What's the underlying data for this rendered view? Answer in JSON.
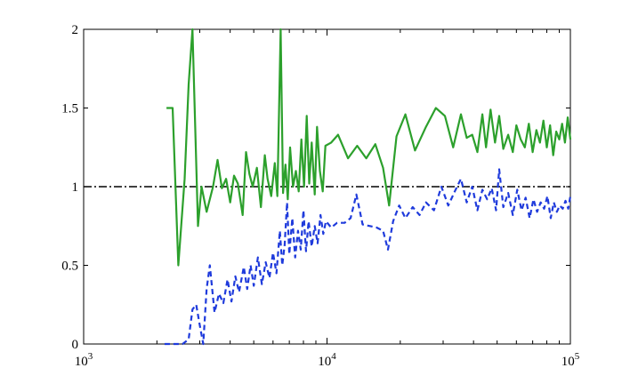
{
  "chart_data": {
    "type": "line",
    "x_scale": "log",
    "xlim": [
      1000,
      100000
    ],
    "ylim": [
      0,
      2
    ],
    "x_ticks": [
      {
        "value": 1000,
        "base": "10",
        "exp": "3"
      },
      {
        "value": 10000,
        "base": "10",
        "exp": "4"
      },
      {
        "value": 100000,
        "base": "10",
        "exp": "5"
      }
    ],
    "y_ticks": [
      {
        "value": 0,
        "label": "0"
      },
      {
        "value": 0.5,
        "label": "0.5"
      },
      {
        "value": 1,
        "label": "1"
      },
      {
        "value": 1.5,
        "label": "1.5"
      },
      {
        "value": 2,
        "label": "2"
      }
    ],
    "grid": false,
    "reference_line": {
      "y": 1,
      "style": "dash-dot",
      "color": "#000000"
    },
    "series": [
      {
        "color": "#2ca02c",
        "style": "solid",
        "points": [
          [
            2190,
            1.5
          ],
          [
            2320,
            1.5
          ],
          [
            2450,
            0.5
          ],
          [
            2600,
            1.05
          ],
          [
            2700,
            1.65
          ],
          [
            2800,
            2.0
          ],
          [
            2950,
            0.75
          ],
          [
            3050,
            1.0
          ],
          [
            3200,
            0.84
          ],
          [
            3400,
            1.0
          ],
          [
            3550,
            1.17
          ],
          [
            3700,
            0.99
          ],
          [
            3850,
            1.05
          ],
          [
            4000,
            0.9
          ],
          [
            4150,
            1.07
          ],
          [
            4300,
            1.02
          ],
          [
            4500,
            0.82
          ],
          [
            4650,
            1.22
          ],
          [
            4800,
            1.08
          ],
          [
            4950,
            1.0
          ],
          [
            5150,
            1.12
          ],
          [
            5350,
            0.87
          ],
          [
            5550,
            1.2
          ],
          [
            5700,
            1.05
          ],
          [
            5900,
            0.94
          ],
          [
            6100,
            1.15
          ],
          [
            6250,
            0.94
          ],
          [
            6450,
            2.0
          ],
          [
            6600,
            0.96
          ],
          [
            6750,
            1.14
          ],
          [
            6900,
            0.92
          ],
          [
            7050,
            1.25
          ],
          [
            7250,
            1.0
          ],
          [
            7450,
            1.1
          ],
          [
            7650,
            0.97
          ],
          [
            7850,
            1.3
          ],
          [
            8050,
            1.0
          ],
          [
            8250,
            1.45
          ],
          [
            8450,
            1.02
          ],
          [
            8650,
            1.28
          ],
          [
            8900,
            0.95
          ],
          [
            9100,
            1.38
          ],
          [
            9350,
            1.1
          ],
          [
            9600,
            0.97
          ],
          [
            9850,
            1.26
          ],
          [
            10400,
            1.28
          ],
          [
            11100,
            1.33
          ],
          [
            12200,
            1.18
          ],
          [
            13300,
            1.26
          ],
          [
            14500,
            1.18
          ],
          [
            15800,
            1.27
          ],
          [
            17000,
            1.12
          ],
          [
            18000,
            0.88
          ],
          [
            19300,
            1.32
          ],
          [
            21000,
            1.46
          ],
          [
            23000,
            1.23
          ],
          [
            25500,
            1.38
          ],
          [
            28000,
            1.5
          ],
          [
            30500,
            1.45
          ],
          [
            33000,
            1.25
          ],
          [
            35500,
            1.46
          ],
          [
            37500,
            1.31
          ],
          [
            39500,
            1.33
          ],
          [
            41500,
            1.22
          ],
          [
            43500,
            1.46
          ],
          [
            45000,
            1.25
          ],
          [
            47000,
            1.49
          ],
          [
            49000,
            1.28
          ],
          [
            51000,
            1.45
          ],
          [
            53000,
            1.24
          ],
          [
            55500,
            1.33
          ],
          [
            58000,
            1.22
          ],
          [
            60000,
            1.39
          ],
          [
            62500,
            1.3
          ],
          [
            65000,
            1.25
          ],
          [
            67500,
            1.4
          ],
          [
            70000,
            1.22
          ],
          [
            72500,
            1.36
          ],
          [
            75000,
            1.28
          ],
          [
            77500,
            1.42
          ],
          [
            80000,
            1.25
          ],
          [
            82500,
            1.39
          ],
          [
            85000,
            1.2
          ],
          [
            87500,
            1.35
          ],
          [
            90000,
            1.3
          ],
          [
            92500,
            1.4
          ],
          [
            95000,
            1.28
          ],
          [
            97500,
            1.44
          ],
          [
            100000,
            1.3
          ]
        ]
      },
      {
        "color": "#1f3bdc",
        "style": "dashed",
        "points": [
          [
            2150,
            0.0
          ],
          [
            2400,
            0.0
          ],
          [
            2550,
            0.0
          ],
          [
            2700,
            0.03
          ],
          [
            2800,
            0.22
          ],
          [
            2900,
            0.25
          ],
          [
            3000,
            0.12
          ],
          [
            3100,
            0.0
          ],
          [
            3200,
            0.35
          ],
          [
            3300,
            0.5
          ],
          [
            3450,
            0.2
          ],
          [
            3600,
            0.32
          ],
          [
            3750,
            0.26
          ],
          [
            3900,
            0.41
          ],
          [
            4050,
            0.27
          ],
          [
            4200,
            0.43
          ],
          [
            4350,
            0.33
          ],
          [
            4550,
            0.49
          ],
          [
            4700,
            0.35
          ],
          [
            4850,
            0.5
          ],
          [
            5000,
            0.37
          ],
          [
            5200,
            0.55
          ],
          [
            5400,
            0.38
          ],
          [
            5600,
            0.52
          ],
          [
            5800,
            0.42
          ],
          [
            6000,
            0.58
          ],
          [
            6200,
            0.45
          ],
          [
            6400,
            0.72
          ],
          [
            6550,
            0.5
          ],
          [
            6700,
            0.63
          ],
          [
            6850,
            0.9
          ],
          [
            7000,
            0.57
          ],
          [
            7200,
            0.8
          ],
          [
            7400,
            0.55
          ],
          [
            7600,
            0.72
          ],
          [
            7800,
            0.6
          ],
          [
            8000,
            0.85
          ],
          [
            8200,
            0.59
          ],
          [
            8400,
            0.78
          ],
          [
            8650,
            0.62
          ],
          [
            8900,
            0.75
          ],
          [
            9150,
            0.64
          ],
          [
            9400,
            0.82
          ],
          [
            9650,
            0.7
          ],
          [
            9900,
            0.78
          ],
          [
            10400,
            0.74
          ],
          [
            11000,
            0.77
          ],
          [
            11800,
            0.77
          ],
          [
            12500,
            0.8
          ],
          [
            13200,
            0.95
          ],
          [
            14000,
            0.76
          ],
          [
            15000,
            0.75
          ],
          [
            16000,
            0.74
          ],
          [
            17000,
            0.72
          ],
          [
            17800,
            0.6
          ],
          [
            18700,
            0.78
          ],
          [
            19800,
            0.88
          ],
          [
            21000,
            0.8
          ],
          [
            22500,
            0.87
          ],
          [
            24000,
            0.82
          ],
          [
            25500,
            0.9
          ],
          [
            27500,
            0.85
          ],
          [
            29500,
            1.0
          ],
          [
            31500,
            0.88
          ],
          [
            33500,
            0.97
          ],
          [
            35500,
            1.05
          ],
          [
            37500,
            0.9
          ],
          [
            39500,
            1.0
          ],
          [
            41500,
            0.85
          ],
          [
            43500,
            0.98
          ],
          [
            45500,
            0.92
          ],
          [
            47500,
            0.99
          ],
          [
            49500,
            0.85
          ],
          [
            51000,
            1.11
          ],
          [
            53000,
            0.87
          ],
          [
            55500,
            0.96
          ],
          [
            58000,
            0.82
          ],
          [
            60500,
            0.98
          ],
          [
            63000,
            0.85
          ],
          [
            65500,
            0.93
          ],
          [
            68000,
            0.8
          ],
          [
            70500,
            0.92
          ],
          [
            73000,
            0.84
          ],
          [
            75500,
            0.9
          ],
          [
            78000,
            0.86
          ],
          [
            80500,
            0.94
          ],
          [
            83000,
            0.8
          ],
          [
            85500,
            0.9
          ],
          [
            88000,
            0.84
          ],
          [
            90500,
            0.88
          ],
          [
            93000,
            0.86
          ],
          [
            95500,
            0.91
          ],
          [
            98000,
            0.86
          ],
          [
            100000,
            0.94
          ]
        ]
      }
    ]
  }
}
